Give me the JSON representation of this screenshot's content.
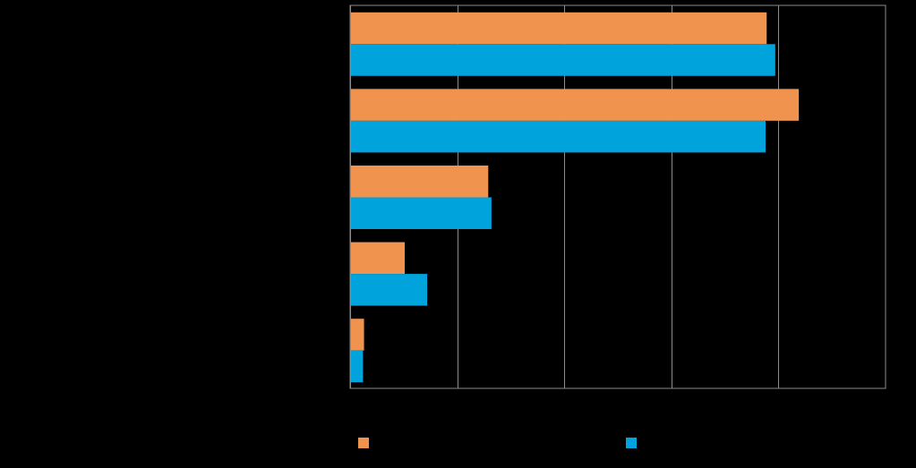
{
  "chart_data": {
    "type": "bar",
    "orientation": "horizontal",
    "categories": [
      "",
      "",
      "",
      "",
      ""
    ],
    "series": [
      {
        "name": "",
        "color": "#F0934F",
        "values": [
          38.9,
          41.9,
          12.9,
          5.1,
          1.3
        ]
      },
      {
        "name": "",
        "color": "#00A3DC",
        "values": [
          39.7,
          38.8,
          13.2,
          7.2,
          1.2
        ]
      }
    ],
    "xlim": [
      0,
      50
    ],
    "x_ticks": [
      0,
      10,
      20,
      30,
      40,
      50
    ],
    "grid": true,
    "legend_position": "bottom",
    "title": "",
    "xlabel": "",
    "ylabel": ""
  }
}
